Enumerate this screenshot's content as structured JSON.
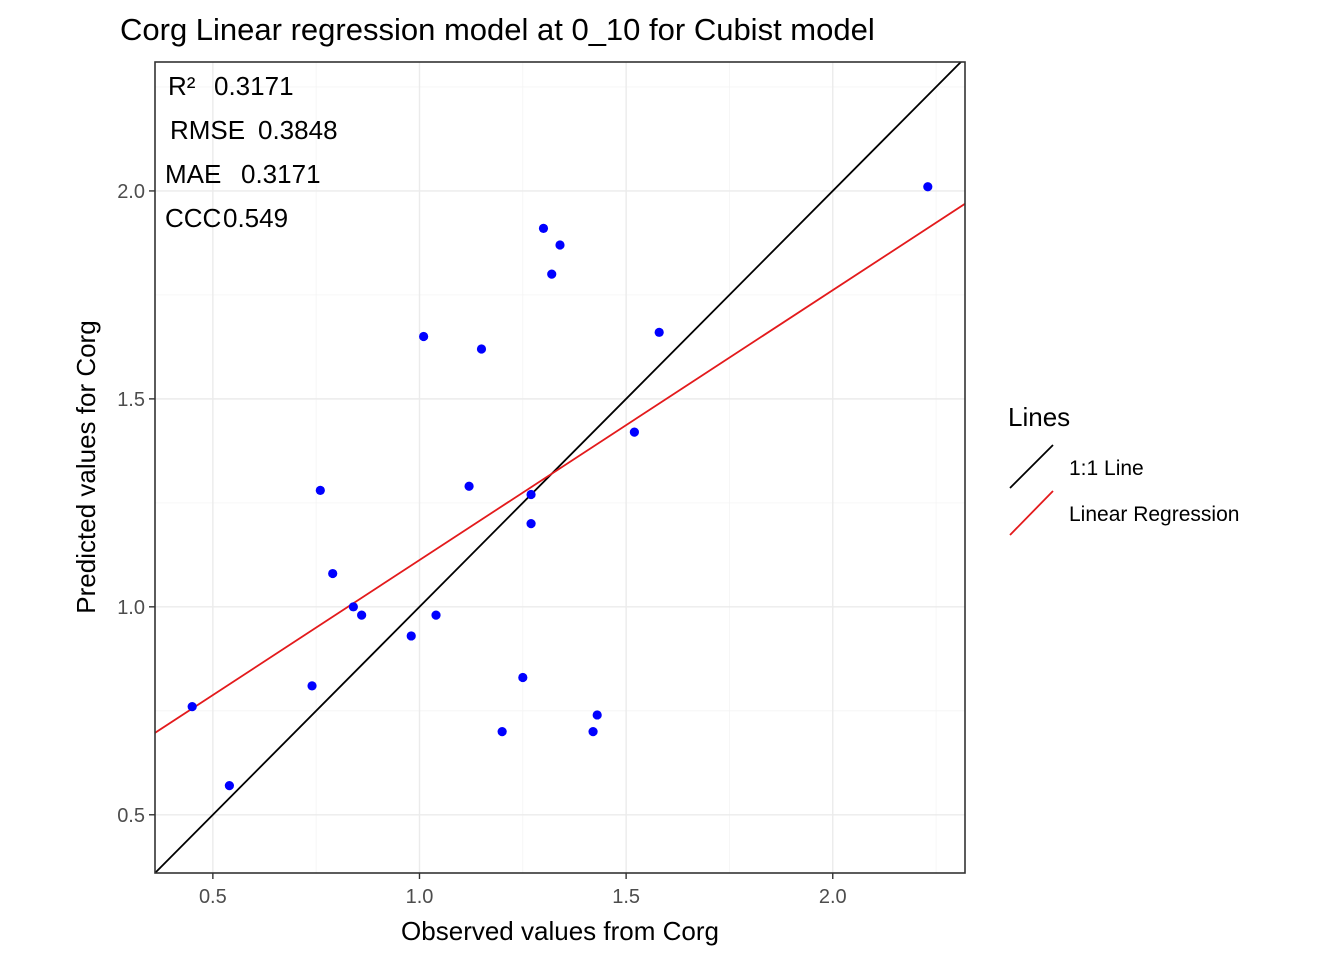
{
  "chart_data": {
    "type": "scatter",
    "title": "Corg  Linear regression model at  0_10  for  Cubist  model",
    "xlabel": "Observed values from Corg",
    "ylabel": "Predicted values for Corg",
    "xlim": [
      0.36,
      2.32
    ],
    "ylim": [
      0.36,
      2.31
    ],
    "x_ticks": [
      0.5,
      1.0,
      1.5,
      2.0
    ],
    "x_tick_labels": [
      "0.5",
      "1.0",
      "1.5",
      "2.0"
    ],
    "y_ticks": [
      0.5,
      1.0,
      1.5,
      2.0
    ],
    "y_tick_labels": [
      "0.5",
      "1.0",
      "1.5",
      "2.0"
    ],
    "grid": true,
    "point_color": "#0000ff",
    "points": [
      {
        "x": 0.45,
        "y": 0.76
      },
      {
        "x": 0.54,
        "y": 0.57
      },
      {
        "x": 0.74,
        "y": 0.81
      },
      {
        "x": 0.76,
        "y": 1.28
      },
      {
        "x": 0.79,
        "y": 1.08
      },
      {
        "x": 0.84,
        "y": 1.0
      },
      {
        "x": 0.86,
        "y": 0.98
      },
      {
        "x": 0.98,
        "y": 0.93
      },
      {
        "x": 1.01,
        "y": 1.65
      },
      {
        "x": 1.04,
        "y": 0.98
      },
      {
        "x": 1.12,
        "y": 1.29
      },
      {
        "x": 1.15,
        "y": 1.62
      },
      {
        "x": 1.2,
        "y": 0.7
      },
      {
        "x": 1.25,
        "y": 0.83
      },
      {
        "x": 1.27,
        "y": 1.27
      },
      {
        "x": 1.27,
        "y": 1.2
      },
      {
        "x": 1.3,
        "y": 1.91
      },
      {
        "x": 1.32,
        "y": 1.8
      },
      {
        "x": 1.34,
        "y": 1.87
      },
      {
        "x": 1.42,
        "y": 0.7
      },
      {
        "x": 1.43,
        "y": 0.74
      },
      {
        "x": 1.52,
        "y": 1.42
      },
      {
        "x": 1.58,
        "y": 1.66
      },
      {
        "x": 2.23,
        "y": 2.01
      }
    ],
    "lines": [
      {
        "name": "1:1 Line",
        "color": "#000000",
        "slope": 1.0,
        "intercept": 0.0
      },
      {
        "name": "Linear Regression",
        "color": "#e31a1c",
        "slope": 0.649,
        "intercept": 0.4634
      }
    ],
    "legend": {
      "title": "Lines",
      "position": "right"
    },
    "annotations": [
      {
        "label": "R²",
        "value": "0.3171"
      },
      {
        "label": "RMSE",
        "value": "0.3848"
      },
      {
        "label": "MAE",
        "value": "0.3171"
      },
      {
        "label": "CCC",
        "value": "0.549"
      }
    ]
  }
}
